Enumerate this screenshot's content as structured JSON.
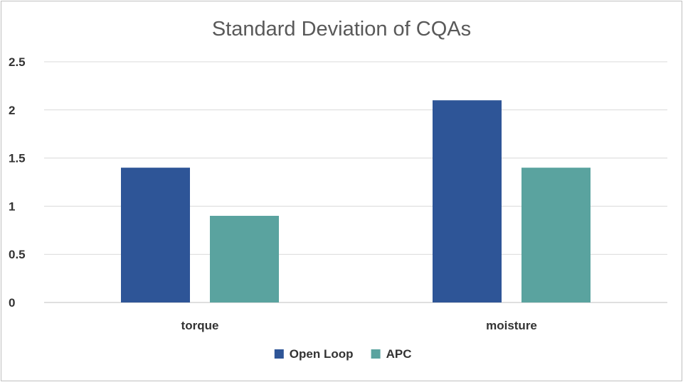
{
  "chart_data": {
    "type": "bar",
    "title": "Standard Deviation of CQAs",
    "xlabel": "",
    "ylabel": "",
    "categories": [
      "torque",
      "moisture"
    ],
    "series": [
      {
        "name": "Open Loop",
        "values": [
          1.4,
          2.1
        ],
        "color": "#2e5597"
      },
      {
        "name": "APC",
        "values": [
          0.9,
          1.4
        ],
        "color": "#5aa39f"
      }
    ],
    "ylim": [
      0,
      2.5
    ],
    "yticks": [
      "0",
      "0.5",
      "1",
      "1.5",
      "2",
      "2.5"
    ],
    "grid": true,
    "legend_position": "bottom"
  }
}
